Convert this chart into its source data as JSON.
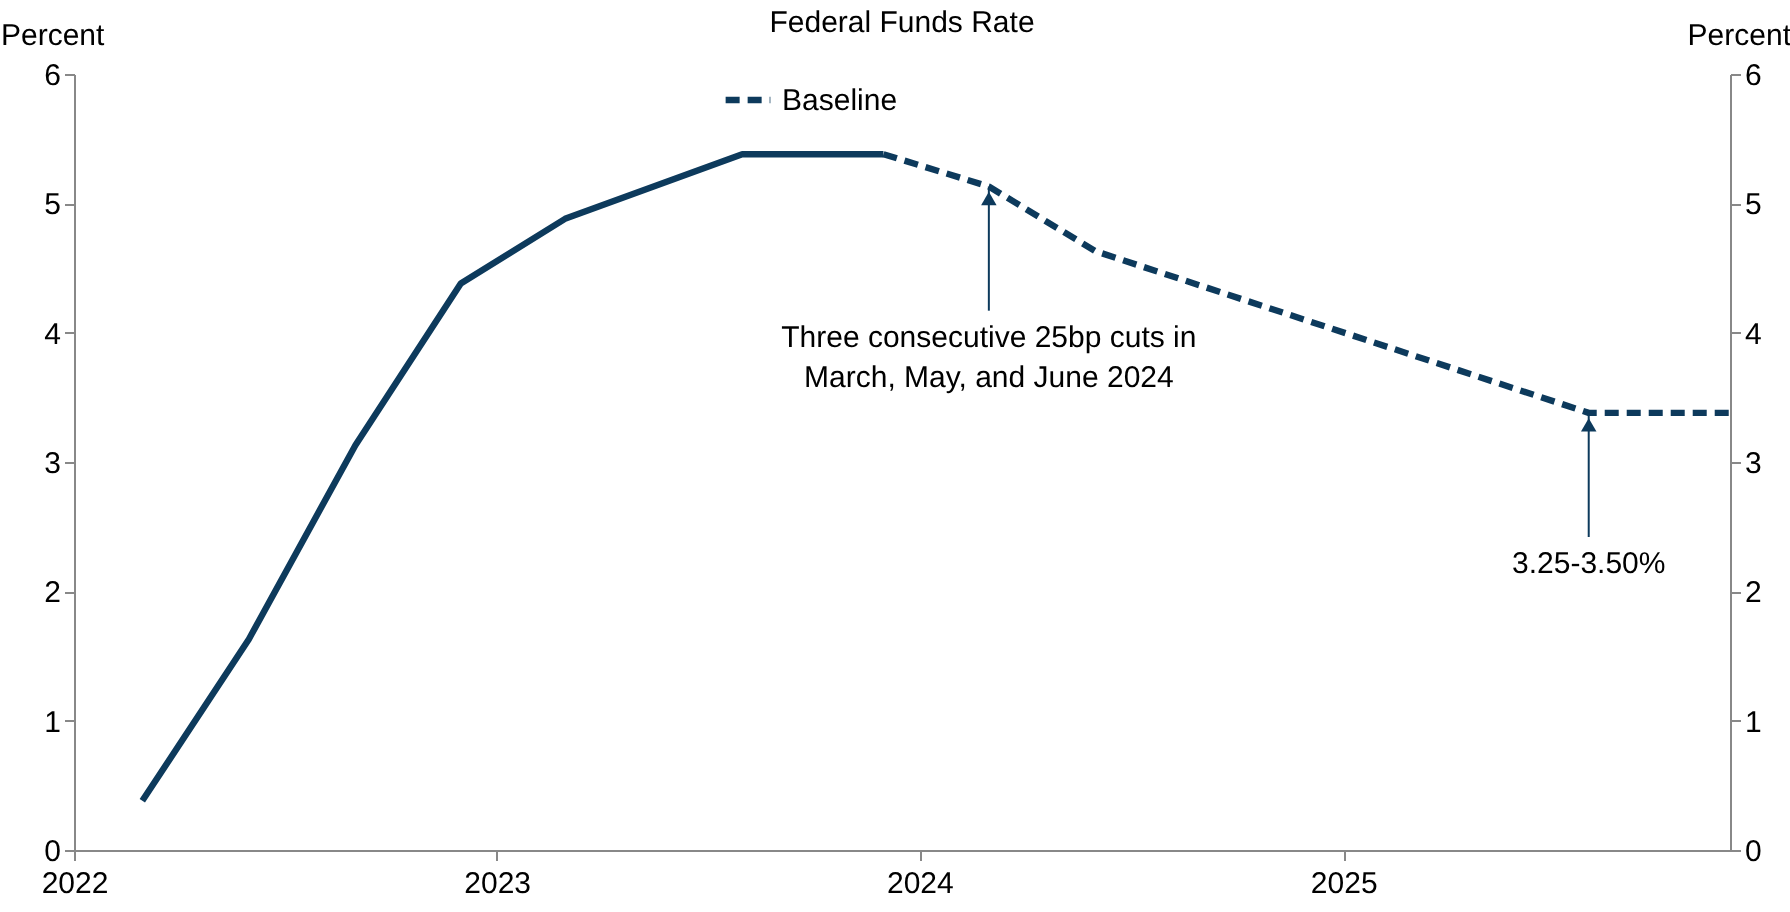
{
  "chart_data": {
    "type": "line",
    "title": "Federal Funds Rate",
    "ylabel": "Percent",
    "y2label": "Percent",
    "xlim": [
      "2022-01",
      "2025-12"
    ],
    "xticks": [
      "2022",
      "2023",
      "2024",
      "2025"
    ],
    "ylim": [
      0,
      6
    ],
    "yticks": [
      0,
      1,
      2,
      3,
      4,
      5,
      6
    ],
    "y2lim": [
      0,
      6
    ],
    "y2ticks": [
      0,
      1,
      2,
      3,
      4,
      5,
      6
    ],
    "grid": false,
    "legend": "top",
    "marker": "none",
    "series": [
      {
        "color": "#0d3a5c",
        "line_style": "solid",
        "x": [
          "2022-03",
          "2022-06",
          "2022-09",
          "2022-12",
          "2023-03",
          "2023-08",
          "2023-12"
        ],
        "values": [
          0.38,
          1.63,
          3.13,
          4.38,
          4.88,
          5.38,
          5.38
        ]
      },
      {
        "name": "Baseline",
        "color": "#0d3a5c",
        "line_style": "dashed",
        "x": [
          "2023-12",
          "2024-03",
          "2024-06",
          "2025-08",
          "2025-12"
        ],
        "values": [
          5.38,
          5.13,
          4.63,
          3.38,
          3.38
        ]
      }
    ],
    "annotations": [
      {
        "text": "Three consecutive 25bp cuts in\nMarch, May, and June 2024",
        "x": "2024-03",
        "y": 5.13
      },
      {
        "text": "3.25-3.50%",
        "x": "2025-08",
        "y": 3.38
      }
    ]
  }
}
